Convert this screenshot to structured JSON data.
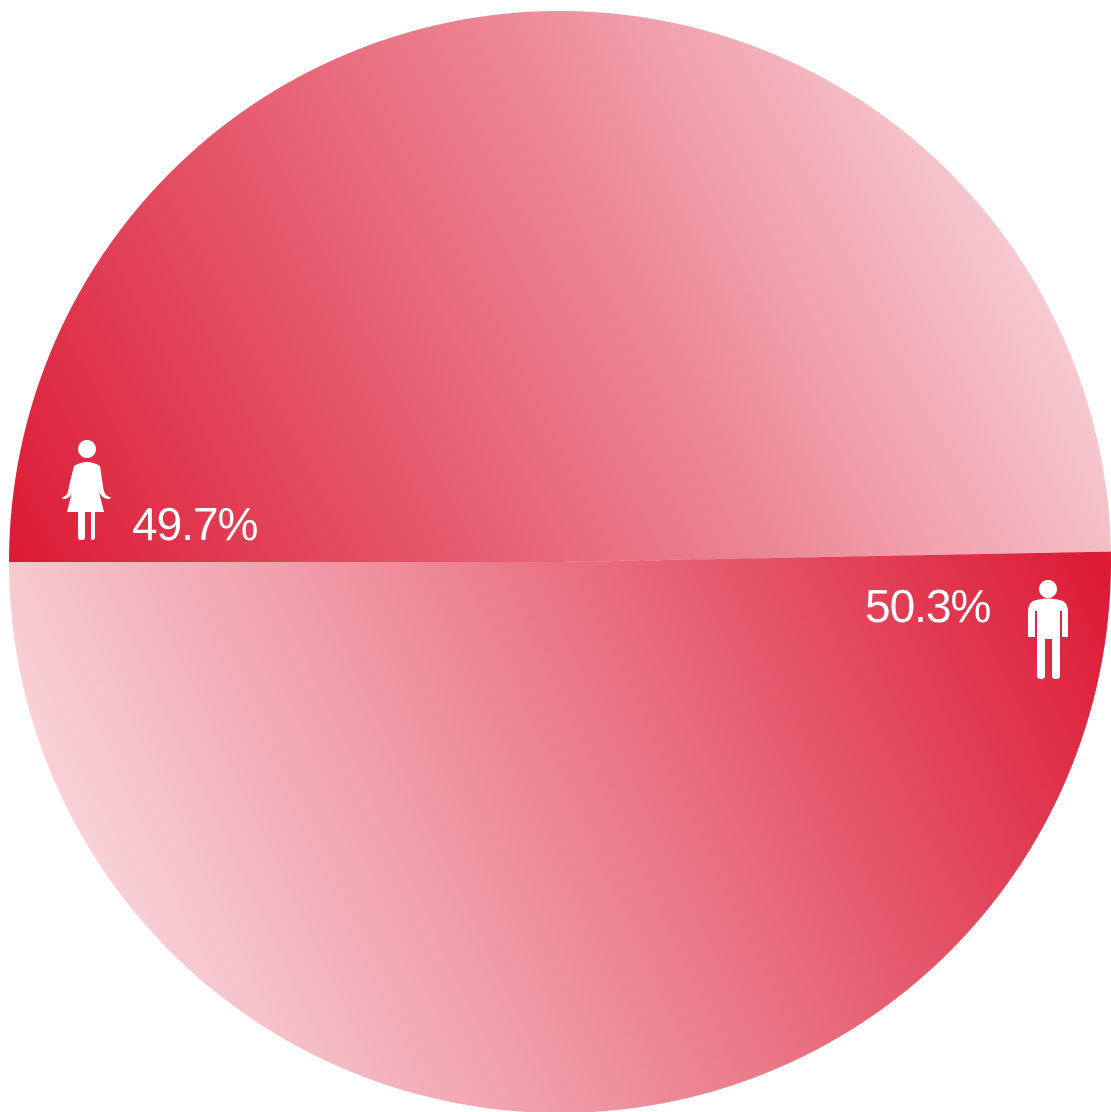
{
  "chart_data": {
    "type": "pie",
    "categories": [
      "female",
      "male"
    ],
    "values": [
      49.7,
      50.3
    ],
    "labels": [
      "49.7%",
      "50.3%"
    ],
    "icons": [
      "female-person-icon",
      "male-person-icon"
    ],
    "colors": {
      "accent": "#dc1c37",
      "light": "#fbe6ea"
    },
    "legend": "none",
    "grid": false
  }
}
